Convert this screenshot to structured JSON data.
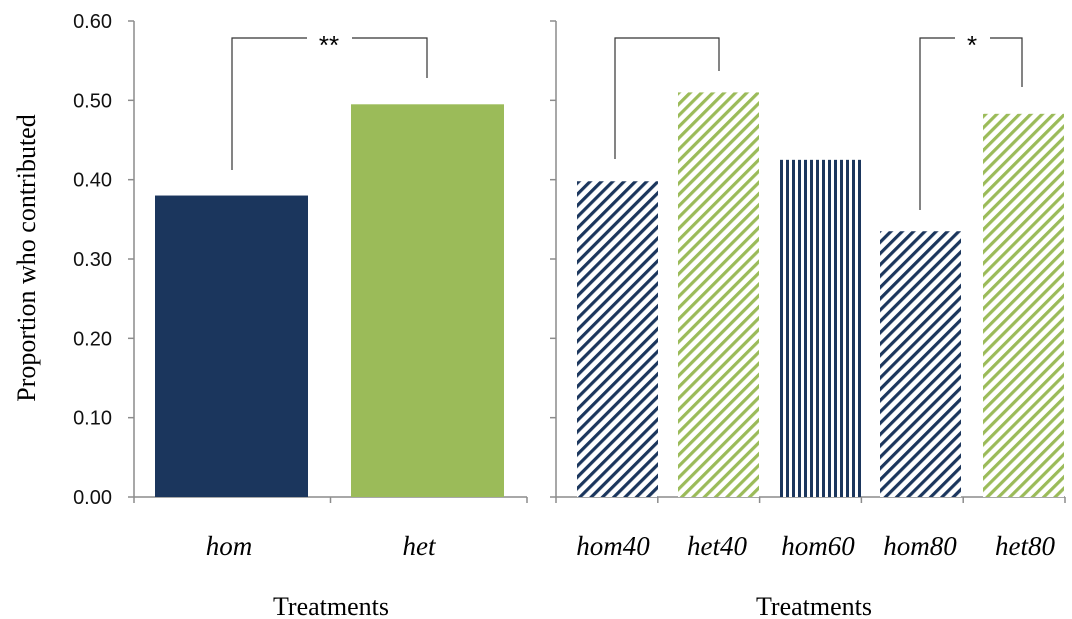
{
  "colors": {
    "navy": "#1b365d",
    "green": "#9bbb59"
  },
  "ylabel": "Proportion who contributed",
  "y_ticks": [
    "0.00",
    "0.10",
    "0.20",
    "0.30",
    "0.40",
    "0.50",
    "0.60"
  ],
  "chart_data": [
    {
      "type": "bar",
      "categories": [
        "hom",
        "het"
      ],
      "values": [
        0.38,
        0.495
      ],
      "xlabel": "Treatments",
      "ylabel": "Proportion who contributed",
      "ylim": [
        0,
        0.6
      ],
      "bar_fill": [
        "solid",
        "solid"
      ],
      "bar_color": [
        "navy",
        "green"
      ],
      "significance": [
        {
          "between": [
            "hom",
            "het"
          ],
          "label": "**"
        }
      ],
      "grid": false
    },
    {
      "type": "bar",
      "categories": [
        "hom40",
        "het40",
        "hom60",
        "hom80",
        "het80"
      ],
      "values": [
        0.398,
        0.51,
        0.425,
        0.335,
        0.483
      ],
      "xlabel": "Treatments",
      "ylim": [
        0,
        0.6
      ],
      "bar_fill": [
        "diagonal-hatch",
        "diagonal-hatch",
        "vertical-hatch",
        "diagonal-hatch",
        "diagonal-hatch"
      ],
      "bar_color": [
        "navy",
        "green",
        "navy",
        "navy",
        "green"
      ],
      "significance": [
        {
          "between": [
            "hom40",
            "het40"
          ],
          "label": ""
        },
        {
          "between": [
            "hom80",
            "het80"
          ],
          "label": "*"
        }
      ],
      "grid": false
    }
  ]
}
